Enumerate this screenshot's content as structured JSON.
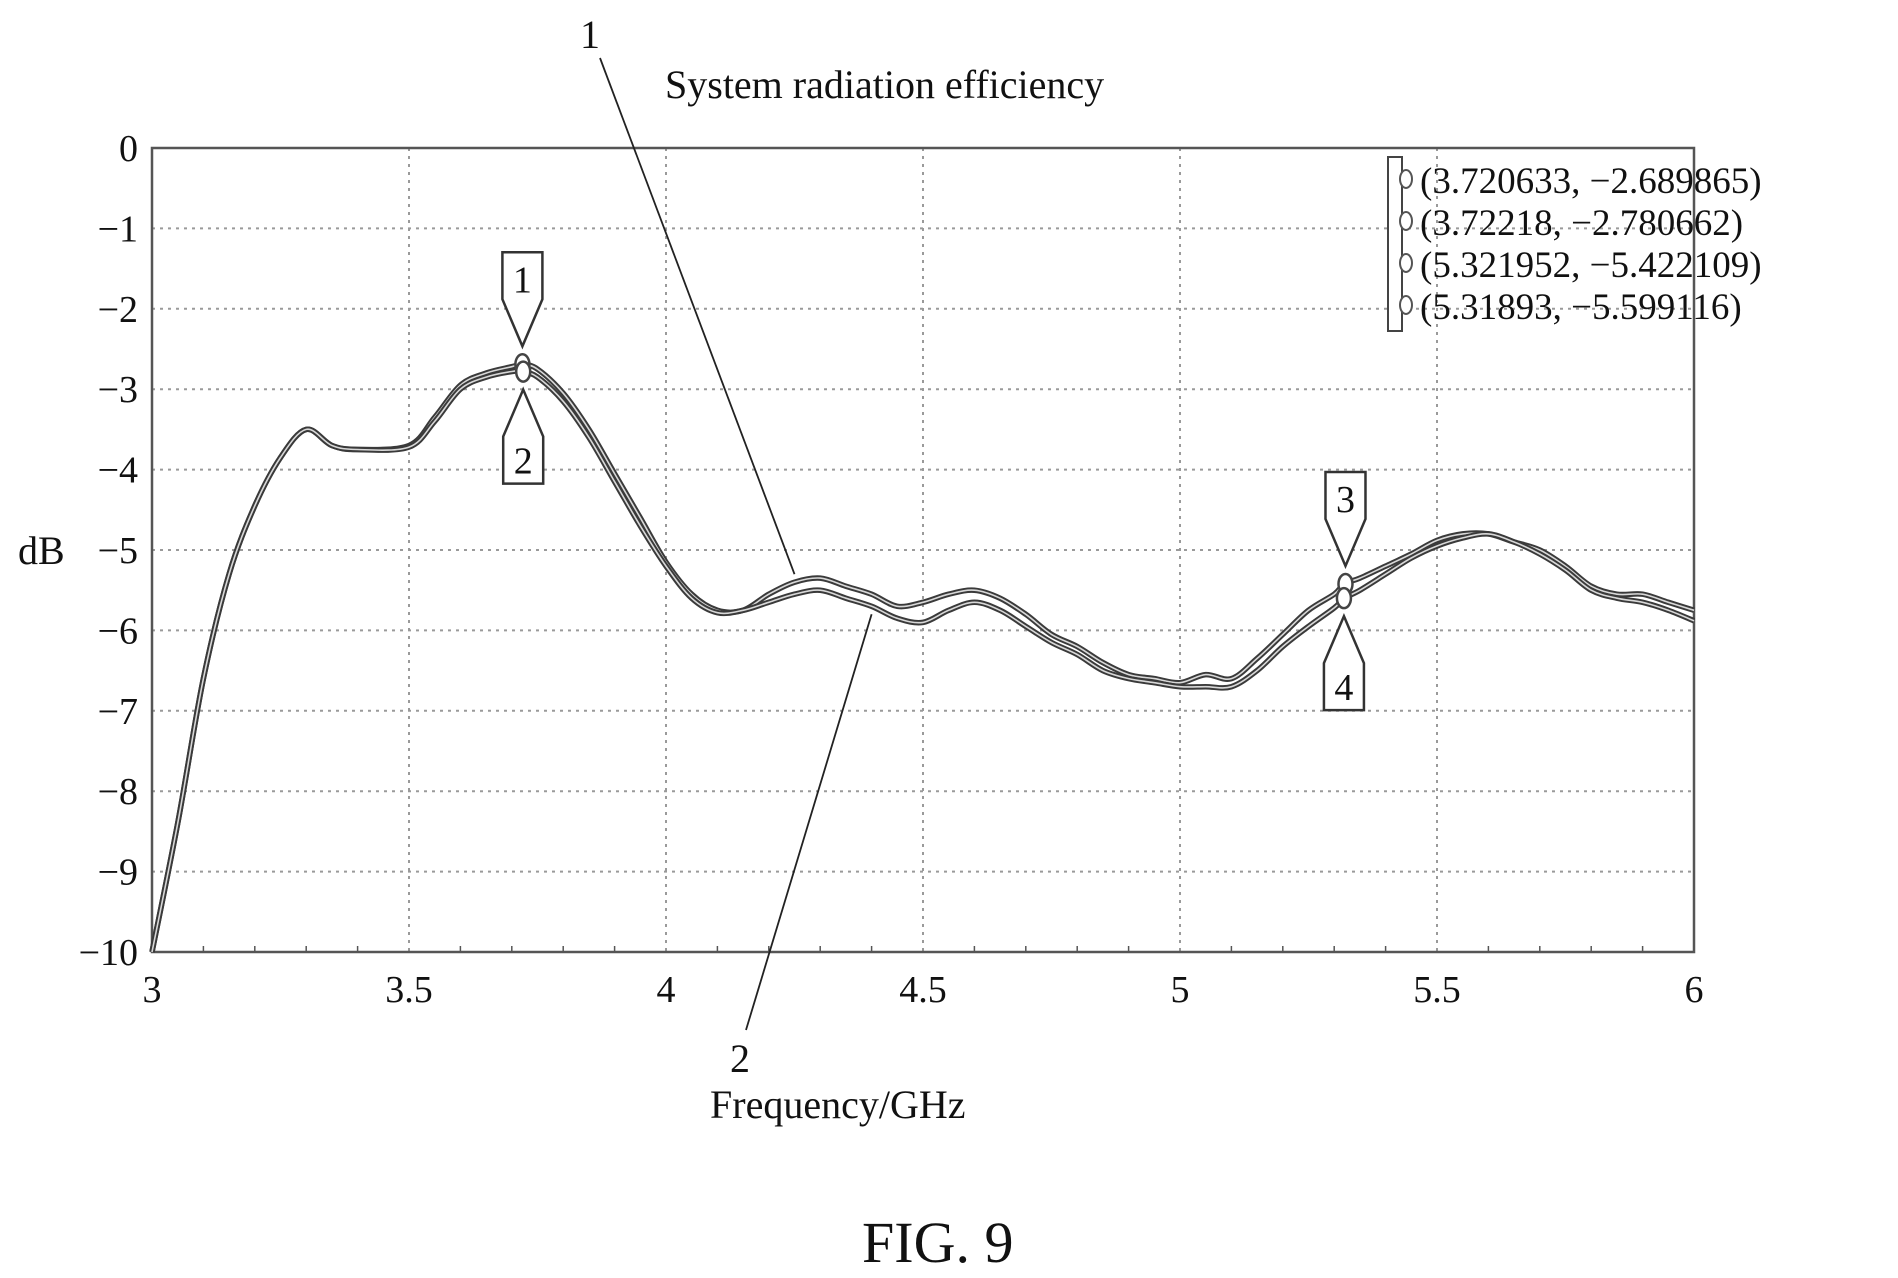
{
  "chart_data": {
    "type": "line",
    "title": "System radiation efficiency",
    "xlabel": "Frequency/GHz",
    "ylabel": "dB",
    "xlim": [
      3,
      6
    ],
    "ylim": [
      -10,
      0
    ],
    "x_ticks": [
      "3",
      "3.5",
      "4",
      "4.5",
      "5",
      "5.5",
      "6"
    ],
    "y_ticks": [
      "0",
      "−1",
      "−2",
      "−3",
      "−4",
      "−5",
      "−6",
      "−7",
      "−8",
      "−9",
      "−10"
    ],
    "grid": true,
    "series": [
      {
        "name": "1",
        "x": [
          3.0,
          3.05,
          3.1,
          3.15,
          3.2,
          3.25,
          3.3,
          3.35,
          3.4,
          3.5,
          3.55,
          3.6,
          3.65,
          3.7,
          3.72,
          3.75,
          3.8,
          3.85,
          3.9,
          3.95,
          4.0,
          4.05,
          4.1,
          4.15,
          4.2,
          4.25,
          4.3,
          4.35,
          4.4,
          4.45,
          4.5,
          4.55,
          4.6,
          4.65,
          4.7,
          4.75,
          4.8,
          4.85,
          4.9,
          4.95,
          5.0,
          5.05,
          5.1,
          5.15,
          5.2,
          5.25,
          5.3,
          5.32,
          5.35,
          5.4,
          5.45,
          5.5,
          5.55,
          5.6,
          5.65,
          5.7,
          5.75,
          5.8,
          5.85,
          5.9,
          5.95,
          6.0
        ],
        "y": [
          -10.0,
          -8.4,
          -6.6,
          -5.3,
          -4.45,
          -3.85,
          -3.5,
          -3.7,
          -3.75,
          -3.7,
          -3.35,
          -2.95,
          -2.8,
          -2.72,
          -2.69,
          -2.75,
          -3.05,
          -3.5,
          -4.05,
          -4.6,
          -5.15,
          -5.55,
          -5.75,
          -5.75,
          -5.55,
          -5.4,
          -5.35,
          -5.45,
          -5.55,
          -5.7,
          -5.65,
          -5.55,
          -5.5,
          -5.6,
          -5.8,
          -6.05,
          -6.2,
          -6.4,
          -6.55,
          -6.6,
          -6.65,
          -6.55,
          -6.6,
          -6.35,
          -6.05,
          -5.75,
          -5.55,
          -5.42,
          -5.35,
          -5.2,
          -5.05,
          -4.88,
          -4.8,
          -4.8,
          -4.9,
          -5.0,
          -5.2,
          -5.45,
          -5.55,
          -5.55,
          -5.65,
          -5.75
        ]
      },
      {
        "name": "2",
        "x": [
          3.0,
          3.05,
          3.1,
          3.15,
          3.2,
          3.25,
          3.3,
          3.35,
          3.4,
          3.5,
          3.55,
          3.6,
          3.65,
          3.7,
          3.72,
          3.75,
          3.8,
          3.85,
          3.9,
          3.95,
          4.0,
          4.05,
          4.1,
          4.15,
          4.2,
          4.25,
          4.3,
          4.35,
          4.4,
          4.45,
          4.5,
          4.55,
          4.6,
          4.65,
          4.7,
          4.75,
          4.8,
          4.85,
          4.9,
          4.95,
          5.0,
          5.05,
          5.1,
          5.15,
          5.2,
          5.25,
          5.3,
          5.32,
          5.35,
          5.4,
          5.45,
          5.5,
          5.55,
          5.6,
          5.65,
          5.7,
          5.75,
          5.8,
          5.85,
          5.9,
          5.95,
          6.0
        ],
        "y": [
          -10.0,
          -8.4,
          -6.6,
          -5.3,
          -4.45,
          -3.85,
          -3.5,
          -3.7,
          -3.75,
          -3.72,
          -3.4,
          -3.0,
          -2.85,
          -2.78,
          -2.78,
          -2.85,
          -3.15,
          -3.6,
          -4.15,
          -4.7,
          -5.2,
          -5.6,
          -5.78,
          -5.75,
          -5.65,
          -5.55,
          -5.5,
          -5.6,
          -5.7,
          -5.85,
          -5.9,
          -5.75,
          -5.65,
          -5.75,
          -5.95,
          -6.15,
          -6.3,
          -6.5,
          -6.6,
          -6.65,
          -6.7,
          -6.7,
          -6.7,
          -6.5,
          -6.2,
          -5.95,
          -5.72,
          -5.6,
          -5.5,
          -5.3,
          -5.1,
          -4.95,
          -4.85,
          -4.8,
          -4.9,
          -5.05,
          -5.25,
          -5.5,
          -5.6,
          -5.65,
          -5.75,
          -5.88
        ]
      }
    ],
    "markers": [
      {
        "label": "1",
        "x": 3.720633,
        "y": -2.689865,
        "pointer": "down"
      },
      {
        "label": "2",
        "x": 3.72218,
        "y": -2.780662,
        "pointer": "up"
      },
      {
        "label": "3",
        "x": 5.321952,
        "y": -5.422109,
        "pointer": "down"
      },
      {
        "label": "4",
        "x": 5.31893,
        "y": -5.599116,
        "pointer": "up"
      }
    ],
    "legend": {
      "placement": "top-right",
      "entries": [
        "(3.720633, −2.689865)",
        "(3.72218, −2.780662)",
        "(5.321952, −5.422109)",
        "(5.31893, −5.599116)"
      ]
    },
    "callouts": [
      {
        "label": "1",
        "target_series": "1",
        "target_x": 4.25
      },
      {
        "label": "2",
        "target_series": "2",
        "target_x": 4.4
      }
    ],
    "caption": "FIG. 9"
  }
}
